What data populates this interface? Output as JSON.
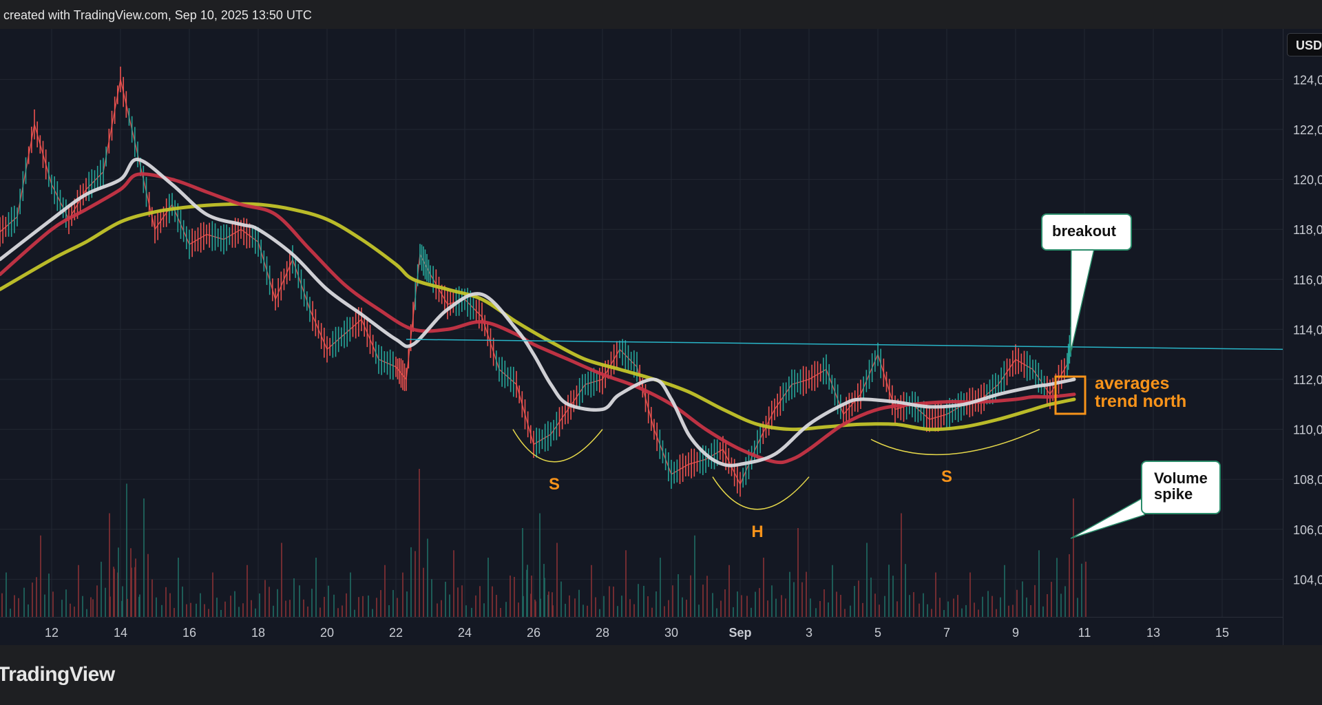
{
  "header": {
    "watermark": "created with TradingView.com, Sep 10, 2025 13:50 UTC"
  },
  "footer": {
    "logo_text": "TradingView"
  },
  "price_axis": {
    "currency": "USD",
    "tick_labels": [
      "124,0",
      "122,0",
      "120,0",
      "118,0",
      "116,0",
      "114,0",
      "112,0",
      "110,0",
      "108,0",
      "106,0",
      "104,0"
    ]
  },
  "time_axis": {
    "tick_labels": [
      "12",
      "14",
      "16",
      "18",
      "20",
      "22",
      "24",
      "26",
      "28",
      "30",
      "Sep",
      "3",
      "5",
      "7",
      "9",
      "11",
      "13",
      "15"
    ]
  },
  "annotations": {
    "breakout": "breakout",
    "volume_spike_line1": "Volume",
    "volume_spike_line2": "spike",
    "averages_line1": "averages",
    "averages_line2": "trend north",
    "left_shoulder": "S",
    "head": "H",
    "right_shoulder": "S"
  },
  "colors": {
    "background": "#141823",
    "white_ma": "#d9d9de",
    "red_ma": "#c63446",
    "yellow_ma": "#c3c42a",
    "neckline": "#29b6c9",
    "candle_up": "#26a69a",
    "candle_down": "#ef5350",
    "pattern_curve": "#e6d84a",
    "annotation_text": "#f7931a"
  },
  "chart_data": {
    "type": "line",
    "x_unit": "day (Aug 11 - Sep 16, 2025)",
    "ylim": [
      102.5,
      126.0
    ],
    "y_ticks": [
      104,
      106,
      108,
      110,
      112,
      114,
      116,
      118,
      120,
      122,
      124
    ],
    "x_ticks": [
      {
        "day": 12,
        "label": "12"
      },
      {
        "day": 14,
        "label": "14"
      },
      {
        "day": 16,
        "label": "16"
      },
      {
        "day": 18,
        "label": "18"
      },
      {
        "day": 20,
        "label": "20"
      },
      {
        "day": 22,
        "label": "22"
      },
      {
        "day": 24,
        "label": "24"
      },
      {
        "day": 26,
        "label": "26"
      },
      {
        "day": 28,
        "label": "28"
      },
      {
        "day": 30,
        "label": "30"
      },
      {
        "day": 32,
        "label": "Sep"
      },
      {
        "day": 34,
        "label": "3"
      },
      {
        "day": 36,
        "label": "5"
      },
      {
        "day": 38,
        "label": "7"
      },
      {
        "day": 40,
        "label": "9"
      },
      {
        "day": 42,
        "label": "11"
      },
      {
        "day": 44,
        "label": "13"
      },
      {
        "day": 46,
        "label": "15"
      }
    ],
    "price": [
      [
        10.5,
        117.9
      ],
      [
        11.0,
        118.5
      ],
      [
        11.5,
        122.2
      ],
      [
        12.0,
        119.8
      ],
      [
        12.5,
        118.4
      ],
      [
        13.0,
        119.6
      ],
      [
        13.5,
        120.3
      ],
      [
        14.0,
        124.0
      ],
      [
        14.5,
        121.0
      ],
      [
        15.0,
        118.0
      ],
      [
        15.5,
        119.0
      ],
      [
        16.0,
        117.4
      ],
      [
        16.5,
        117.8
      ],
      [
        17.0,
        117.6
      ],
      [
        17.5,
        118.0
      ],
      [
        18.0,
        117.5
      ],
      [
        18.5,
        115.2
      ],
      [
        19.0,
        116.8
      ],
      [
        19.5,
        114.8
      ],
      [
        20.0,
        113.2
      ],
      [
        20.5,
        113.8
      ],
      [
        21.0,
        114.4
      ],
      [
        21.5,
        112.8
      ],
      [
        22.0,
        112.5
      ],
      [
        22.3,
        112.0
      ],
      [
        22.7,
        117.0
      ],
      [
        23.0,
        116.2
      ],
      [
        23.5,
        115.0
      ],
      [
        24.0,
        115.2
      ],
      [
        24.5,
        114.5
      ],
      [
        25.0,
        112.4
      ],
      [
        25.5,
        111.8
      ],
      [
        26.0,
        109.4
      ],
      [
        26.5,
        109.8
      ],
      [
        27.0,
        110.8
      ],
      [
        27.5,
        111.8
      ],
      [
        28.0,
        112.0
      ],
      [
        28.5,
        113.2
      ],
      [
        29.0,
        112.5
      ],
      [
        29.5,
        110.0
      ],
      [
        30.0,
        108.2
      ],
      [
        30.5,
        108.6
      ],
      [
        31.0,
        108.8
      ],
      [
        31.5,
        109.2
      ],
      [
        32.0,
        107.8
      ],
      [
        32.5,
        109.4
      ],
      [
        33.0,
        110.8
      ],
      [
        33.5,
        111.8
      ],
      [
        34.0,
        112.0
      ],
      [
        34.5,
        112.4
      ],
      [
        35.0,
        110.6
      ],
      [
        35.5,
        111.4
      ],
      [
        36.0,
        113.0
      ],
      [
        36.5,
        110.8
      ],
      [
        37.0,
        111.0
      ],
      [
        37.5,
        110.4
      ],
      [
        38.0,
        110.6
      ],
      [
        38.5,
        111.0
      ],
      [
        39.0,
        111.2
      ],
      [
        39.5,
        111.8
      ],
      [
        40.0,
        112.8
      ],
      [
        40.5,
        112.4
      ],
      [
        41.0,
        111.4
      ],
      [
        41.5,
        112.6
      ],
      [
        41.7,
        114.4
      ]
    ],
    "series": [
      {
        "color_key": "white_ma",
        "points": [
          [
            10.5,
            116.8
          ],
          [
            12.0,
            118.4
          ],
          [
            13.0,
            119.4
          ],
          [
            14.0,
            120.0
          ],
          [
            14.5,
            120.8
          ],
          [
            15.5,
            119.8
          ],
          [
            16.5,
            118.6
          ],
          [
            17.5,
            118.2
          ],
          [
            18.0,
            118.0
          ],
          [
            19.0,
            117.0
          ],
          [
            20.0,
            115.6
          ],
          [
            21.0,
            114.6
          ],
          [
            22.0,
            113.6
          ],
          [
            22.5,
            113.4
          ],
          [
            23.5,
            114.8
          ],
          [
            24.5,
            115.4
          ],
          [
            25.5,
            114.0
          ],
          [
            26.0,
            113.0
          ],
          [
            26.5,
            111.8
          ],
          [
            27.0,
            111.0
          ],
          [
            28.0,
            110.8
          ],
          [
            28.5,
            111.4
          ],
          [
            29.5,
            112.0
          ],
          [
            30.0,
            111.2
          ],
          [
            30.5,
            109.8
          ],
          [
            31.0,
            109.0
          ],
          [
            31.5,
            108.6
          ],
          [
            32.0,
            108.6
          ],
          [
            33.0,
            109.0
          ],
          [
            34.0,
            110.2
          ],
          [
            35.0,
            111.0
          ],
          [
            35.5,
            111.2
          ],
          [
            36.5,
            111.1
          ],
          [
            37.5,
            110.9
          ],
          [
            38.5,
            111.0
          ],
          [
            39.5,
            111.4
          ],
          [
            40.5,
            111.7
          ],
          [
            41.0,
            111.8
          ],
          [
            41.7,
            112.0
          ]
        ]
      },
      {
        "color_key": "red_ma",
        "points": [
          [
            10.5,
            116.2
          ],
          [
            12.0,
            118.0
          ],
          [
            13.0,
            118.8
          ],
          [
            14.0,
            119.6
          ],
          [
            14.5,
            120.2
          ],
          [
            15.5,
            120.0
          ],
          [
            16.5,
            119.5
          ],
          [
            17.5,
            119.0
          ],
          [
            18.5,
            118.6
          ],
          [
            19.5,
            117.2
          ],
          [
            20.5,
            115.8
          ],
          [
            21.5,
            114.8
          ],
          [
            22.5,
            114.0
          ],
          [
            23.5,
            114.0
          ],
          [
            24.5,
            114.3
          ],
          [
            25.5,
            113.8
          ],
          [
            26.0,
            113.4
          ],
          [
            27.0,
            112.8
          ],
          [
            28.0,
            112.2
          ],
          [
            29.0,
            111.7
          ],
          [
            30.0,
            111.0
          ],
          [
            31.0,
            110.0
          ],
          [
            32.0,
            109.2
          ],
          [
            33.0,
            108.7
          ],
          [
            33.5,
            108.8
          ],
          [
            34.0,
            109.2
          ],
          [
            35.0,
            110.2
          ],
          [
            36.0,
            110.8
          ],
          [
            37.0,
            111.0
          ],
          [
            38.0,
            111.1
          ],
          [
            39.0,
            111.1
          ],
          [
            40.0,
            111.2
          ],
          [
            40.5,
            111.3
          ],
          [
            41.0,
            111.3
          ],
          [
            41.7,
            111.4
          ]
        ]
      },
      {
        "color_key": "yellow_ma",
        "points": [
          [
            10.5,
            115.6
          ],
          [
            12.0,
            116.8
          ],
          [
            13.0,
            117.5
          ],
          [
            14.0,
            118.3
          ],
          [
            15.0,
            118.7
          ],
          [
            16.0,
            118.9
          ],
          [
            17.0,
            119.0
          ],
          [
            18.0,
            119.0
          ],
          [
            19.0,
            118.8
          ],
          [
            20.0,
            118.4
          ],
          [
            21.0,
            117.6
          ],
          [
            22.0,
            116.6
          ],
          [
            22.5,
            116.0
          ],
          [
            23.5,
            115.6
          ],
          [
            24.5,
            115.2
          ],
          [
            25.5,
            114.3
          ],
          [
            26.5,
            113.5
          ],
          [
            27.5,
            112.8
          ],
          [
            28.5,
            112.4
          ],
          [
            29.5,
            112.0
          ],
          [
            30.5,
            111.5
          ],
          [
            31.5,
            110.8
          ],
          [
            32.5,
            110.2
          ],
          [
            33.5,
            110.0
          ],
          [
            34.5,
            110.1
          ],
          [
            35.5,
            110.2
          ],
          [
            36.5,
            110.2
          ],
          [
            37.5,
            110.0
          ],
          [
            38.5,
            110.1
          ],
          [
            39.5,
            110.4
          ],
          [
            40.5,
            110.8
          ],
          [
            41.0,
            111.0
          ],
          [
            41.7,
            111.2
          ]
        ]
      }
    ],
    "neckline": {
      "from": [
        22.3,
        113.6
      ],
      "to": [
        47.8,
        113.2
      ]
    },
    "volume_relative": [
      [
        10.6,
        0.3
      ],
      [
        11.6,
        0.55
      ],
      [
        12.7,
        0.35
      ],
      [
        13.6,
        0.7
      ],
      [
        14.1,
        0.9
      ],
      [
        14.6,
        0.8
      ],
      [
        15.6,
        0.4
      ],
      [
        16.6,
        0.3
      ],
      [
        17.6,
        0.35
      ],
      [
        18.6,
        0.5
      ],
      [
        19.6,
        0.4
      ],
      [
        20.6,
        0.3
      ],
      [
        21.6,
        0.35
      ],
      [
        22.6,
        1.0
      ],
      [
        23.6,
        0.45
      ],
      [
        24.6,
        0.4
      ],
      [
        25.6,
        0.6
      ],
      [
        26.1,
        0.7
      ],
      [
        26.6,
        0.5
      ],
      [
        27.6,
        0.35
      ],
      [
        28.6,
        0.45
      ],
      [
        29.6,
        0.4
      ],
      [
        30.6,
        0.55
      ],
      [
        31.6,
        0.35
      ],
      [
        32.6,
        0.4
      ],
      [
        33.6,
        0.6
      ],
      [
        34.6,
        0.35
      ],
      [
        35.6,
        0.5
      ],
      [
        36.6,
        0.7
      ],
      [
        37.6,
        0.3
      ],
      [
        38.6,
        0.3
      ],
      [
        39.6,
        0.35
      ],
      [
        40.6,
        0.45
      ],
      [
        41.6,
        0.8
      ]
    ],
    "pattern_arcs": [
      {
        "label_key": "left_shoulder",
        "from": [
          25.4,
          110.0
        ],
        "to": [
          28.0,
          110.0
        ],
        "bottom": [
          26.6,
          108.7
        ]
      },
      {
        "label_key": "head",
        "from": [
          31.2,
          108.1
        ],
        "to": [
          34.0,
          108.1
        ],
        "bottom": [
          32.5,
          106.8
        ]
      },
      {
        "label_key": "right_shoulder",
        "from": [
          35.8,
          109.6
        ],
        "to": [
          40.7,
          110.0
        ],
        "bottom": [
          38.0,
          109.0
        ]
      }
    ]
  }
}
